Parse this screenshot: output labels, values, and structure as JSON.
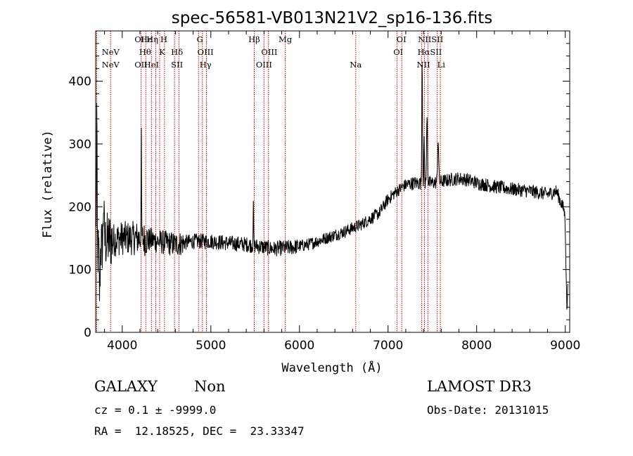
{
  "chart_data": {
    "type": "line",
    "title": "spec-56581-VB013N21V2_sp16-136.fits",
    "xlabel": "Wavelength (Å)",
    "ylabel": "Flux (relative)",
    "xlim": [
      3700,
      9050
    ],
    "ylim": [
      0,
      480
    ],
    "xticks": [
      4000,
      5000,
      6000,
      7000,
      8000,
      9000
    ],
    "yticks": [
      0,
      100,
      200,
      300,
      400
    ],
    "line_color": "#000000",
    "marker_color": "#cc0000",
    "continuum": [
      [
        3700,
        120
      ],
      [
        3800,
        145
      ],
      [
        4000,
        150
      ],
      [
        4200,
        150
      ],
      [
        4400,
        145
      ],
      [
        4600,
        140
      ],
      [
        4800,
        145
      ],
      [
        5000,
        145
      ],
      [
        5200,
        142
      ],
      [
        5400,
        140
      ],
      [
        5500,
        138
      ],
      [
        5700,
        133
      ],
      [
        5900,
        135
      ],
      [
        6100,
        140
      ],
      [
        6300,
        150
      ],
      [
        6500,
        160
      ],
      [
        6700,
        172
      ],
      [
        6900,
        190
      ],
      [
        7000,
        212
      ],
      [
        7100,
        225
      ],
      [
        7200,
        235
      ],
      [
        7300,
        238
      ],
      [
        7400,
        237
      ],
      [
        7500,
        238
      ],
      [
        7600,
        240
      ],
      [
        7700,
        243
      ],
      [
        7800,
        245
      ],
      [
        7900,
        243
      ],
      [
        8000,
        238
      ],
      [
        8200,
        232
      ],
      [
        8400,
        228
      ],
      [
        8600,
        225
      ],
      [
        8800,
        220
      ],
      [
        8900,
        225
      ],
      [
        9000,
        190
      ]
    ],
    "features": [
      {
        "x": 3712,
        "dy": 230,
        "w": 5
      },
      {
        "x": 3745,
        "dy": -70,
        "w": 6
      },
      {
        "x": 3790,
        "dy": 70,
        "w": 6
      },
      {
        "x": 4215,
        "dy": 160,
        "w": 4
      },
      {
        "x": 5480,
        "dy": 60,
        "w": 4
      },
      {
        "x": 7385,
        "dy": 200,
        "w": 6
      },
      {
        "x": 7408,
        "dy": 70,
        "w": 5
      },
      {
        "x": 7440,
        "dy": 115,
        "w": 7
      },
      {
        "x": 7565,
        "dy": 70,
        "w": 8
      },
      {
        "x": 9020,
        "dy": -150,
        "w": 15
      }
    ],
    "lines": [
      {
        "label": "NeV",
        "x": 3869,
        "row": 1
      },
      {
        "label": "NeV",
        "x": 3869,
        "row": 2
      },
      {
        "label": "OII",
        "x": 4212,
        "row": 0
      },
      {
        "label": "OII",
        "x": 4212,
        "row": 2
      },
      {
        "label": "Hε",
        "x": 4270,
        "row": 0
      },
      {
        "label": "Hθ",
        "x": 4258,
        "row": 1
      },
      {
        "label": "Hη",
        "x": 4340,
        "row": 0
      },
      {
        "label": "HeI",
        "x": 4330,
        "row": 2
      },
      {
        "label": "H",
        "x": 4470,
        "row": 0
      },
      {
        "label": "K",
        "x": 4450,
        "row": 1
      },
      {
        "label": "Hδ",
        "x": 4618,
        "row": 1
      },
      {
        "label": "SII",
        "x": 4618,
        "row": 2
      },
      {
        "label": "G",
        "x": 4876,
        "row": 0
      },
      {
        "label": "OIII",
        "x": 4940,
        "row": 1
      },
      {
        "label": "Hγ",
        "x": 4940,
        "row": 2
      },
      {
        "label": "Hβ",
        "x": 5490,
        "row": 0
      },
      {
        "label": "OIII",
        "x": 5660,
        "row": 1
      },
      {
        "label": "OIII",
        "x": 5600,
        "row": 2
      },
      {
        "label": "Mg",
        "x": 5840,
        "row": 0
      },
      {
        "label": "Na",
        "x": 6635,
        "row": 2
      },
      {
        "label": "OI",
        "x": 7150,
        "row": 0
      },
      {
        "label": "OI",
        "x": 7115,
        "row": 1
      },
      {
        "label": "NIISII",
        "x": 7480,
        "row": 0
      },
      {
        "label": "HαSII",
        "x": 7470,
        "row": 1
      },
      {
        "label": "NII",
        "x": 7400,
        "row": 2
      },
      {
        "label": "Li",
        "x": 7600,
        "row": 2
      }
    ],
    "markers": [
      3712,
      3869,
      4212,
      4266,
      4330,
      4378,
      4422,
      4477,
      4590,
      4640,
      4861,
      4905,
      4950,
      5490,
      5600,
      5650,
      5840,
      6635,
      7100,
      7155,
      7380,
      7410,
      7450,
      7555,
      7590
    ]
  },
  "footer": {
    "class_label": "GALAXY",
    "subclass_label": "Non",
    "survey_label": "LAMOST DR3",
    "cz_text": "cz = 0.1 ± -9999.0",
    "obs_date_text": "Obs-Date: 20131015",
    "radec_text": "RA =  12.18525, DEC =  23.33347"
  }
}
